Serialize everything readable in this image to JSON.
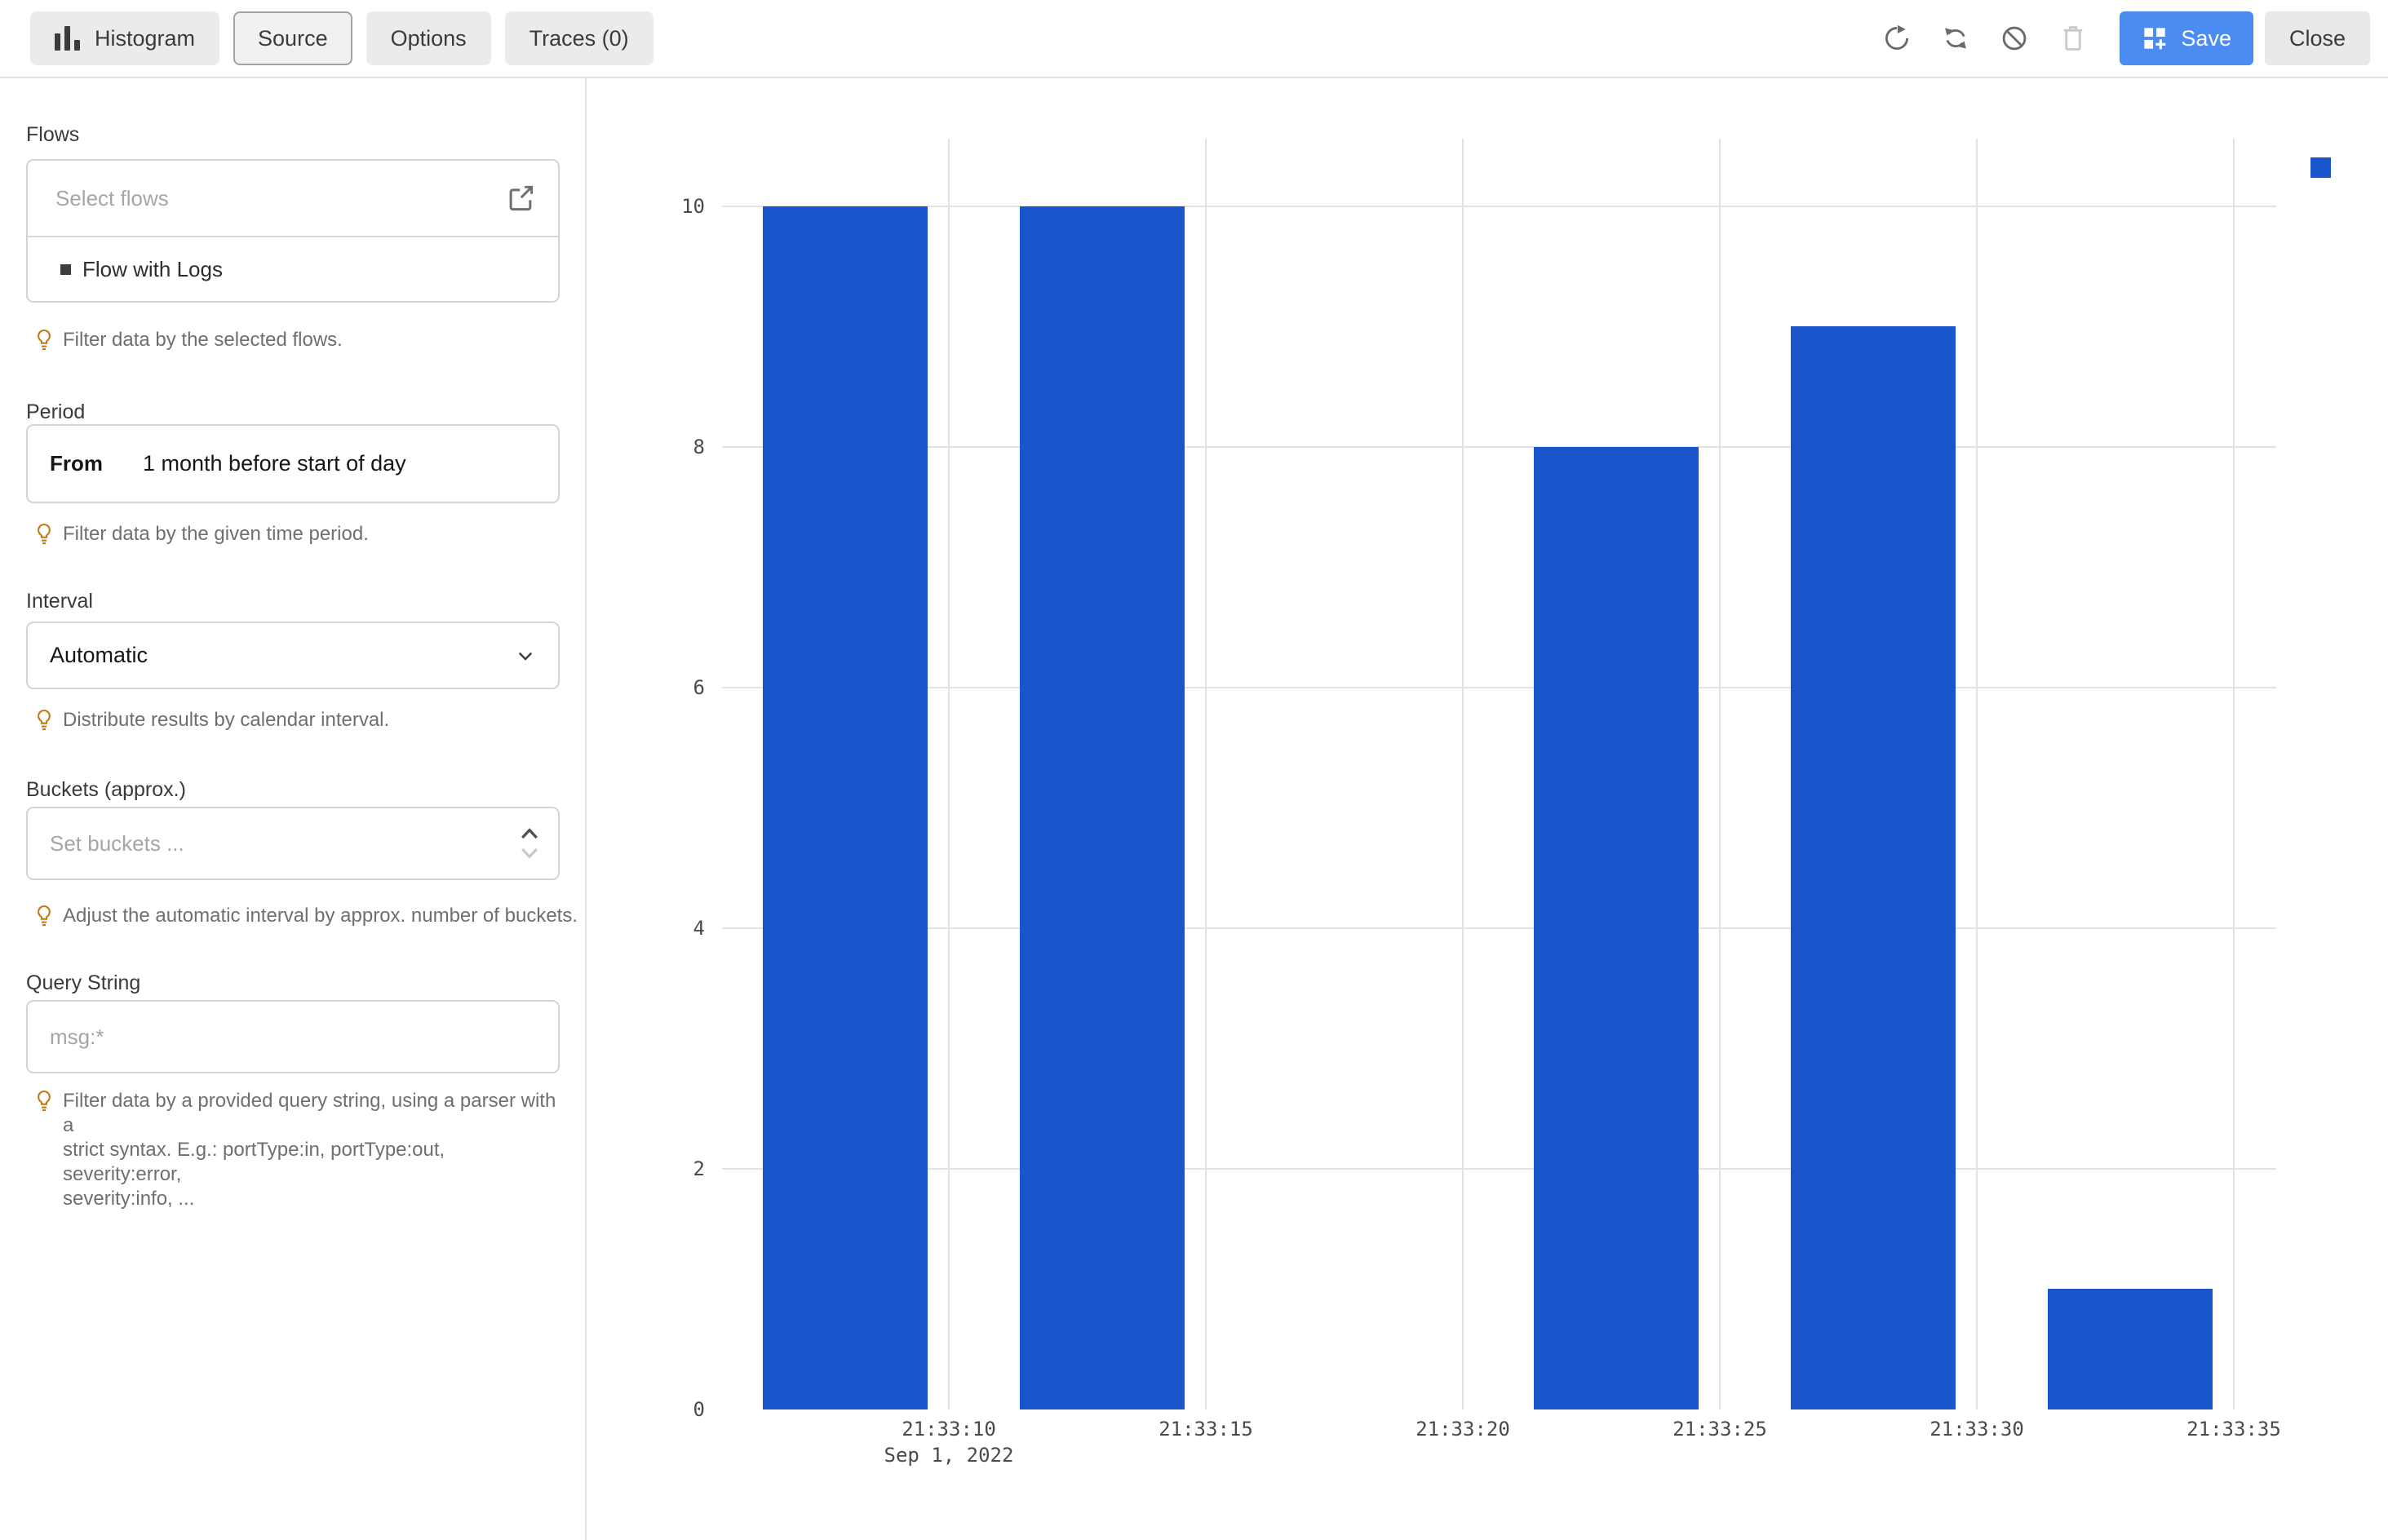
{
  "toolbar": {
    "buttons": [
      {
        "label": "Histogram",
        "icon": "histogram-bars-icon",
        "selected": false
      },
      {
        "label": "Source",
        "selected": true
      },
      {
        "label": "Options",
        "selected": false
      },
      {
        "label": "Traces (0)",
        "selected": false
      }
    ],
    "icon_actions": [
      "refresh-icon",
      "renew-icon",
      "ban-icon",
      "trash-icon"
    ],
    "trash_disabled": true,
    "save_label": "Save",
    "save_icon": "grid-plus-icon",
    "save_color": "#4b8cf1",
    "close_label": "Close"
  },
  "sidebar": {
    "flows": {
      "label": "Flows",
      "placeholder": "Select flows",
      "open_icon": "launch-icon",
      "selected_flow": "Flow with Logs",
      "hint": "Filter data by the selected flows."
    },
    "period": {
      "label": "Period",
      "from_label": "From",
      "from_value": "1 month before start of day",
      "hint": "Filter data by the given time period."
    },
    "interval": {
      "label": "Interval",
      "value": "Automatic",
      "hint": "Distribute results by calendar interval."
    },
    "buckets": {
      "label": "Buckets (approx.)",
      "placeholder": "Set buckets ...",
      "hint": "Adjust the automatic interval by approx. number of buckets."
    },
    "query": {
      "label": "Query String",
      "placeholder": "msg:*",
      "hint_lines": [
        "Filter data by a provided query string, using a parser with a",
        "strict syntax. E.g.: portType:in, portType:out, severity:error,",
        "severity:info, ..."
      ]
    }
  },
  "chart_data": {
    "type": "bar",
    "title": "",
    "xlabel": "",
    "ylabel": "",
    "x_tick_labels": [
      "21:33:10",
      "21:33:15",
      "21:33:20",
      "21:33:25",
      "21:33:30",
      "21:33:35"
    ],
    "x_date_label": {
      "text": "Sep 1, 2022",
      "under_tick": "21:33:10"
    },
    "bars": [
      {
        "slot_end": "21:33:10",
        "value": 10
      },
      {
        "slot_end": "21:33:15",
        "value": 10
      },
      {
        "slot_end": "21:33:25",
        "value": 8
      },
      {
        "slot_end": "21:33:30",
        "value": 9
      },
      {
        "slot_end": "21:33:35",
        "value": 1
      }
    ],
    "y_ticks": [
      0,
      2,
      4,
      6,
      8,
      10
    ],
    "ylim": [
      0,
      10
    ],
    "grid": true,
    "bar_color": "#1a56cb",
    "legend": {
      "position": "top-right",
      "swatch_color": "#1a56cb",
      "label": ""
    }
  }
}
